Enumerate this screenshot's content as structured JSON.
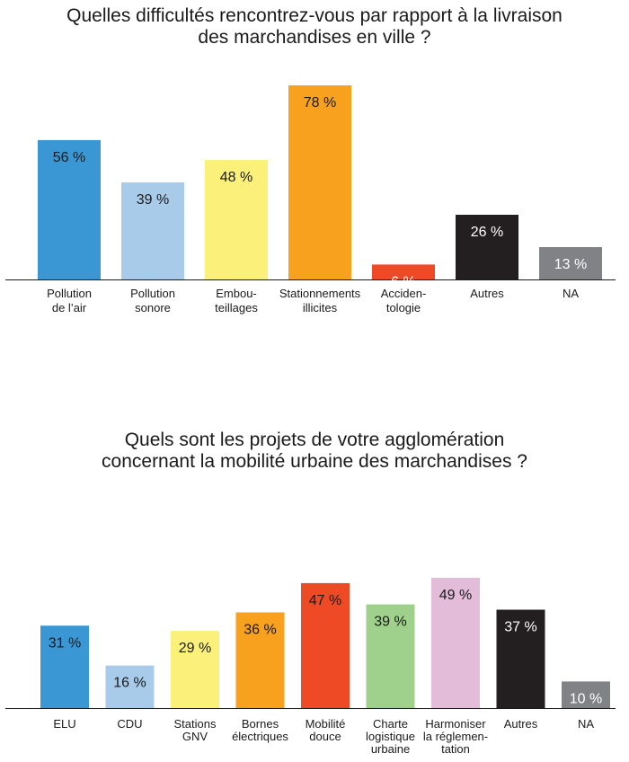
{
  "chart_data": [
    {
      "type": "bar",
      "title_lines": [
        "Quelles difficultés rencontrez-vous par rapport à la livraison",
        "des marchandises en ville ?"
      ],
      "categories": [
        [
          "Pollution",
          "de l’air"
        ],
        [
          "Pollution",
          "sonore"
        ],
        [
          "Embou-",
          "teillages"
        ],
        [
          "Stationnements",
          "illicites"
        ],
        [
          "Acciden-",
          "tologie"
        ],
        [
          "Autres"
        ],
        [
          "NA"
        ]
      ],
      "values": [
        56,
        39,
        48,
        78,
        6,
        26,
        13
      ],
      "value_labels": [
        "56 %",
        "39 %",
        "48 %",
        "78 %",
        "6 %",
        "26 %",
        "13 %"
      ],
      "colors": [
        "#3a97d4",
        "#a9cbea",
        "#fbf07a",
        "#f7a11f",
        "#ed4a25",
        "#231f20",
        "#808285"
      ],
      "label_colors": [
        "#1a1a1a",
        "#1a1a1a",
        "#1a1a1a",
        "#1a1a1a",
        "#ffffff",
        "#ffffff",
        "#ffffff"
      ],
      "ylim": [
        0,
        100
      ],
      "grid": false
    },
    {
      "type": "bar",
      "title_lines": [
        "Quels sont les projets de votre agglomération",
        "concernant la mobilité urbaine des marchandises ?"
      ],
      "categories": [
        [
          "ELU"
        ],
        [
          "CDU"
        ],
        [
          "Stations",
          "GNV"
        ],
        [
          "Bornes",
          "électriques"
        ],
        [
          "Mobilité",
          "douce"
        ],
        [
          "Charte",
          "logistique",
          "urbaine"
        ],
        [
          "Harmoniser",
          "la réglemen-",
          "tation"
        ],
        [
          "Autres"
        ],
        [
          "NA"
        ]
      ],
      "values": [
        31,
        16,
        29,
        36,
        47,
        39,
        49,
        37,
        10
      ],
      "value_labels": [
        "31 %",
        "16 %",
        "29 %",
        "36 %",
        "47 %",
        "39 %",
        "49 %",
        "37 %",
        "10 %"
      ],
      "colors": [
        "#3a97d4",
        "#a9cbea",
        "#fbf07a",
        "#f7a11f",
        "#ed4a25",
        "#9fd08c",
        "#e2bcd9",
        "#231f20",
        "#808285"
      ],
      "label_colors": [
        "#1a1a1a",
        "#1a1a1a",
        "#1a1a1a",
        "#1a1a1a",
        "#1a1a1a",
        "#1a1a1a",
        "#1a1a1a",
        "#ffffff",
        "#ffffff"
      ],
      "ylim": [
        0,
        100
      ],
      "grid": false
    }
  ]
}
